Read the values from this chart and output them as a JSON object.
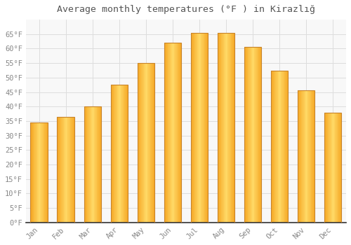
{
  "title": "Average monthly temperatures (°F ) in Kirazlığ",
  "months": [
    "Jan",
    "Feb",
    "Mar",
    "Apr",
    "May",
    "Jun",
    "Jul",
    "Aug",
    "Sep",
    "Oct",
    "Nov",
    "Dec"
  ],
  "values": [
    34.5,
    36.5,
    40.0,
    47.5,
    55.0,
    62.0,
    65.5,
    65.5,
    60.5,
    52.5,
    45.5,
    38.0
  ],
  "bar_color_center": "#FFD966",
  "bar_color_edge": "#F5A623",
  "bar_border_color": "#C8842A",
  "background_color": "#FFFFFF",
  "plot_bg_color": "#F8F8F8",
  "grid_color": "#DDDDDD",
  "text_color": "#888888",
  "title_color": "#555555",
  "ylim": [
    0,
    70
  ],
  "yticks": [
    0,
    5,
    10,
    15,
    20,
    25,
    30,
    35,
    40,
    45,
    50,
    55,
    60,
    65
  ],
  "title_fontsize": 9.5,
  "tick_fontsize": 7.5,
  "bar_width": 0.65
}
